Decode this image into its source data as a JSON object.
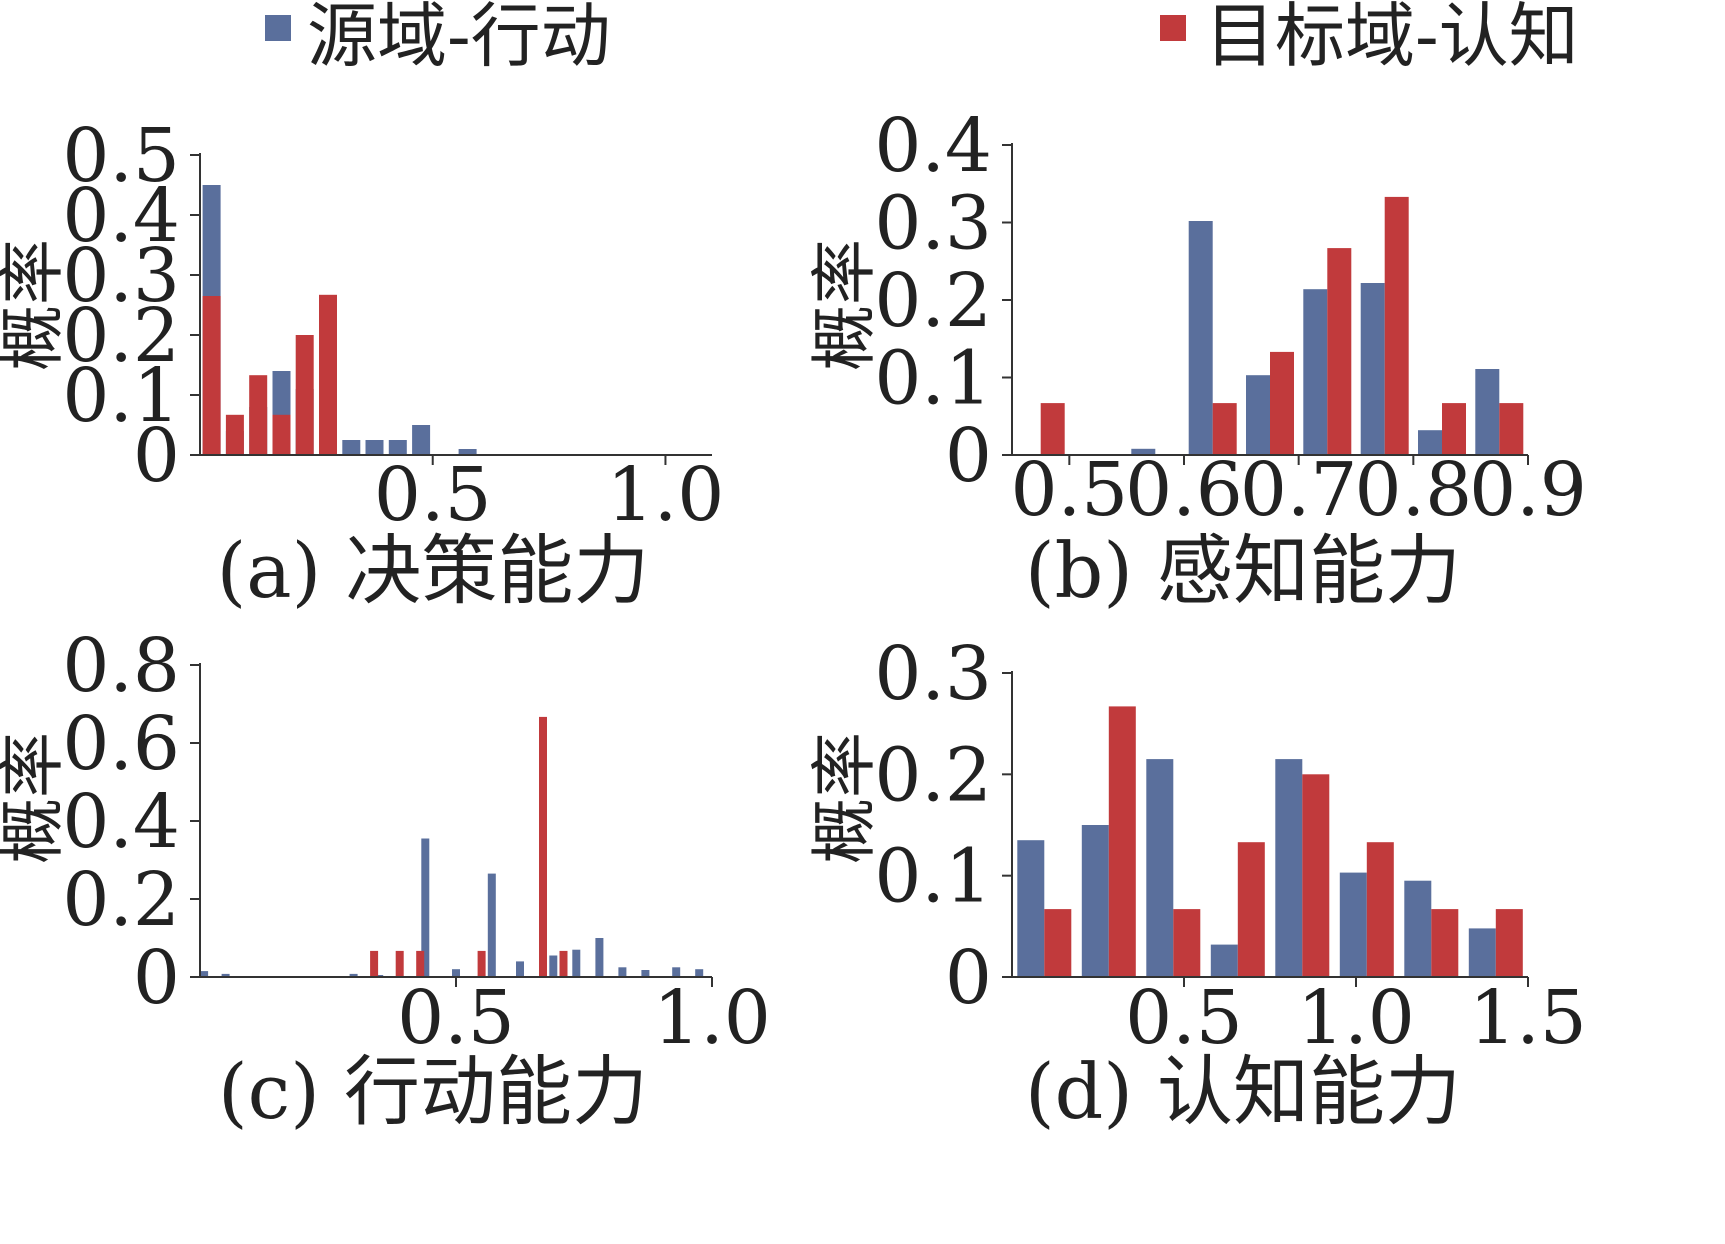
{
  "legend": {
    "placement": "top",
    "items": [
      {
        "label": "源域-行动",
        "color": "#5a6f9c"
      },
      {
        "label": "目标域-认知",
        "color": "#c13a3c"
      }
    ]
  },
  "chart_data": [
    {
      "type": "bar",
      "caption": "(a) 决策能力",
      "ylabel": "概率",
      "xlabel": "",
      "ylim": [
        0,
        0.5
      ],
      "yticks": [
        "0",
        "0.1",
        "0.2",
        "0.3",
        "0.4",
        "0.5"
      ],
      "xticks": [
        {
          "value": 0.5,
          "label": "0.5"
        },
        {
          "value": 1.0,
          "label": "1.0"
        }
      ],
      "xlim": [
        0.0,
        1.1
      ],
      "bin_width": 0.05,
      "series": [
        {
          "name": "源域-行动",
          "color": "#5a6f9c",
          "x": [
            0.025,
            0.075,
            0.125,
            0.175,
            0.225,
            0.275,
            0.325,
            0.375,
            0.425,
            0.475,
            0.525,
            0.575,
            0.625,
            0.675,
            0.725,
            0.775,
            0.825,
            0.875,
            0.925,
            0.975,
            1.025,
            1.075
          ],
          "values": [
            0.45,
            0.04,
            0.08,
            0.14,
            0.11,
            0.04,
            0.025,
            0.025,
            0.025,
            0.05,
            0,
            0.01,
            0,
            0,
            0,
            0,
            0,
            0,
            0,
            0,
            0,
            0
          ]
        },
        {
          "name": "目标域-认知",
          "color": "#c13a3c",
          "x": [
            0.025,
            0.075,
            0.125,
            0.175,
            0.225,
            0.275
          ],
          "values": [
            0.265,
            0.067,
            0.133,
            0.067,
            0.2,
            0.267
          ]
        }
      ]
    },
    {
      "type": "bar",
      "caption": "(b) 感知能力",
      "ylabel": "概率",
      "xlabel": "",
      "ylim": [
        0,
        0.4
      ],
      "yticks": [
        "0",
        "0.1",
        "0.2",
        "0.3",
        "0.4"
      ],
      "xticks": [
        {
          "value": 0.5,
          "label": "0.5"
        },
        {
          "value": 0.6,
          "label": "0.6"
        },
        {
          "value": 0.7,
          "label": "0.7"
        },
        {
          "value": 0.8,
          "label": "0.8"
        },
        {
          "value": 0.9,
          "label": "0.9"
        }
      ],
      "xlim": [
        0.45,
        0.9
      ],
      "bin_width": 0.05,
      "categories_x": [
        0.475,
        0.525,
        0.575,
        0.625,
        0.675,
        0.725,
        0.775,
        0.825,
        0.875
      ],
      "series": [
        {
          "name": "源域-行动",
          "color": "#5a6f9c",
          "values": [
            0,
            0,
            0.008,
            0.302,
            0.103,
            0.214,
            0.222,
            0.032,
            0.111
          ]
        },
        {
          "name": "目标域-认知",
          "color": "#c13a3c",
          "values": [
            0.067,
            0,
            0,
            0.067,
            0.133,
            0.267,
            0.333,
            0.067,
            0.067
          ]
        }
      ]
    },
    {
      "type": "bar",
      "caption": "(c) 行动能力",
      "ylabel": "概率",
      "xlabel": "",
      "ylim": [
        0,
        0.8
      ],
      "yticks": [
        "0",
        "0.2",
        "0.4",
        "0.6",
        "0.8"
      ],
      "xticks": [
        {
          "value": 0.5,
          "label": "0.5"
        },
        {
          "value": 1.0,
          "label": "1.0"
        }
      ],
      "xlim": [
        0.0,
        1.0
      ],
      "series": [
        {
          "name": "源域-行动",
          "color": "#5a6f9c",
          "x": [
            0.008,
            0.05,
            0.3,
            0.35,
            0.44,
            0.5,
            0.57,
            0.625,
            0.69,
            0.735,
            0.78,
            0.825,
            0.87,
            0.93,
            0.975
          ],
          "values": [
            0.015,
            0.008,
            0.008,
            0.005,
            0.355,
            0.02,
            0.265,
            0.04,
            0.055,
            0.07,
            0.1,
            0.025,
            0.018,
            0.025,
            0.02
          ]
        },
        {
          "name": "目标域-认知",
          "color": "#c13a3c",
          "x": [
            0.34,
            0.39,
            0.43,
            0.47,
            0.51,
            0.55,
            0.59,
            0.63,
            0.67,
            0.71,
            0.75,
            0.79
          ],
          "values": [
            0.067,
            0.067,
            0.067,
            0,
            0,
            0.067,
            0,
            0,
            0.667,
            0.067,
            0,
            0
          ]
        }
      ]
    },
    {
      "type": "bar",
      "caption": "(d) 认知能力",
      "ylabel": "概率",
      "xlabel": "",
      "ylim": [
        0,
        0.3
      ],
      "yticks": [
        "0",
        "0.1",
        "0.2",
        "0.3"
      ],
      "xticks": [
        {
          "value": 0.5,
          "label": "0.5"
        },
        {
          "value": 1.0,
          "label": "1.0"
        },
        {
          "value": 1.5,
          "label": "1.5"
        }
      ],
      "xlim": [
        0.0,
        1.5
      ],
      "bin_width": 0.1875,
      "categories_x": [
        0.09375,
        0.28125,
        0.46875,
        0.65625,
        0.84375,
        1.03125,
        1.21875,
        1.40625
      ],
      "series": [
        {
          "name": "源域-行动",
          "color": "#5a6f9c",
          "values": [
            0.135,
            0.15,
            0.215,
            0.032,
            0.215,
            0.103,
            0.095,
            0.048
          ]
        },
        {
          "name": "目标域-认知",
          "color": "#c13a3c",
          "values": [
            0.067,
            0.267,
            0.067,
            0.133,
            0.2,
            0.133,
            0.067,
            0.067
          ]
        }
      ]
    }
  ]
}
